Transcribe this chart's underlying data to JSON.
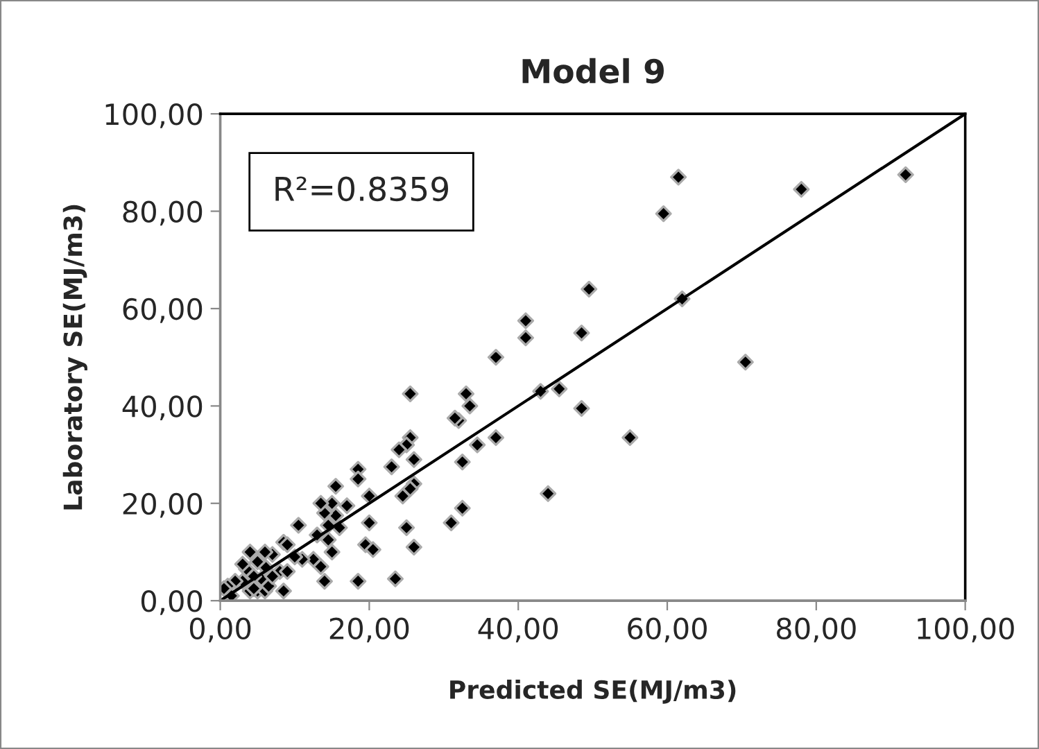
{
  "chart_data": {
    "type": "scatter",
    "title": "Model 9",
    "xlabel": "Predicted SE(MJ/m3)",
    "ylabel": "Laboratory SE(MJ/m3)",
    "annotations": [
      "R²=0.8359"
    ],
    "xlim": [
      0,
      100
    ],
    "ylim": [
      0,
      100
    ],
    "xticks": [
      {
        "value": 0,
        "label": "0,00"
      },
      {
        "value": 20,
        "label": "20,00"
      },
      {
        "value": 40,
        "label": "40,00"
      },
      {
        "value": 60,
        "label": "60,00"
      },
      {
        "value": 80,
        "label": "80,00"
      },
      {
        "value": 100,
        "label": "100,00"
      }
    ],
    "yticks": [
      {
        "value": 0,
        "label": "0,00"
      },
      {
        "value": 20,
        "label": "20,00"
      },
      {
        "value": 40,
        "label": "40,00"
      },
      {
        "value": 60,
        "label": "60,00"
      },
      {
        "value": 80,
        "label": "80,00"
      },
      {
        "value": 100,
        "label": "100,00"
      }
    ],
    "grid": false,
    "legend": false,
    "marker": "diamond",
    "series": [
      {
        "color": "#000000",
        "x": [
          92,
          78,
          61.5,
          59.5,
          62,
          70.5,
          55,
          49.5,
          48.5,
          48.5,
          45.5,
          43,
          44,
          41,
          41,
          37,
          37,
          34.5,
          33.5,
          33,
          32,
          31.5,
          32.5,
          32.5,
          31,
          26,
          26,
          25.5,
          25.5,
          25,
          24.5,
          25.5,
          25,
          26,
          23.5,
          23,
          24,
          20,
          20,
          19.5,
          20.5,
          18.5,
          18.5,
          17,
          18.5,
          15.5,
          15,
          15.5,
          16,
          14,
          14.5,
          14.5,
          15,
          13.5,
          13,
          12.5,
          13.5,
          14,
          10.5,
          11,
          10,
          8.5,
          9,
          8,
          9,
          8.5,
          7,
          6,
          6,
          5.5,
          5,
          6,
          4.5,
          4,
          3.5,
          3,
          3,
          2,
          1,
          0.5,
          1.5,
          4,
          6.5,
          7,
          5,
          4.5
        ],
        "values": [
          87.5,
          84.5,
          87,
          79.5,
          62,
          49,
          33.5,
          64,
          55,
          39.5,
          43.5,
          43,
          22,
          57.5,
          54,
          50,
          33.5,
          32,
          40,
          42.5,
          37,
          37.5,
          28.5,
          19,
          16,
          29,
          24,
          33.5,
          42.5,
          32,
          21.5,
          23,
          15,
          11,
          4.5,
          27.5,
          31,
          21.5,
          16,
          11.5,
          10.5,
          27,
          25,
          19.5,
          4,
          23.5,
          20,
          17.5,
          15,
          18,
          15.5,
          12.5,
          10,
          20,
          13.5,
          8.5,
          7,
          4,
          15.5,
          8.5,
          9,
          12,
          11.5,
          6,
          6,
          2,
          9.5,
          10,
          7,
          4.5,
          2,
          2,
          5,
          10,
          6.5,
          4,
          7.5,
          4,
          3,
          2.5,
          1,
          2,
          3,
          5,
          8,
          2.5
        ]
      },
      {
        "type": "line",
        "color": "#000000",
        "x": [
          0,
          100
        ],
        "values": [
          0,
          100
        ],
        "marker": "none"
      }
    ]
  }
}
